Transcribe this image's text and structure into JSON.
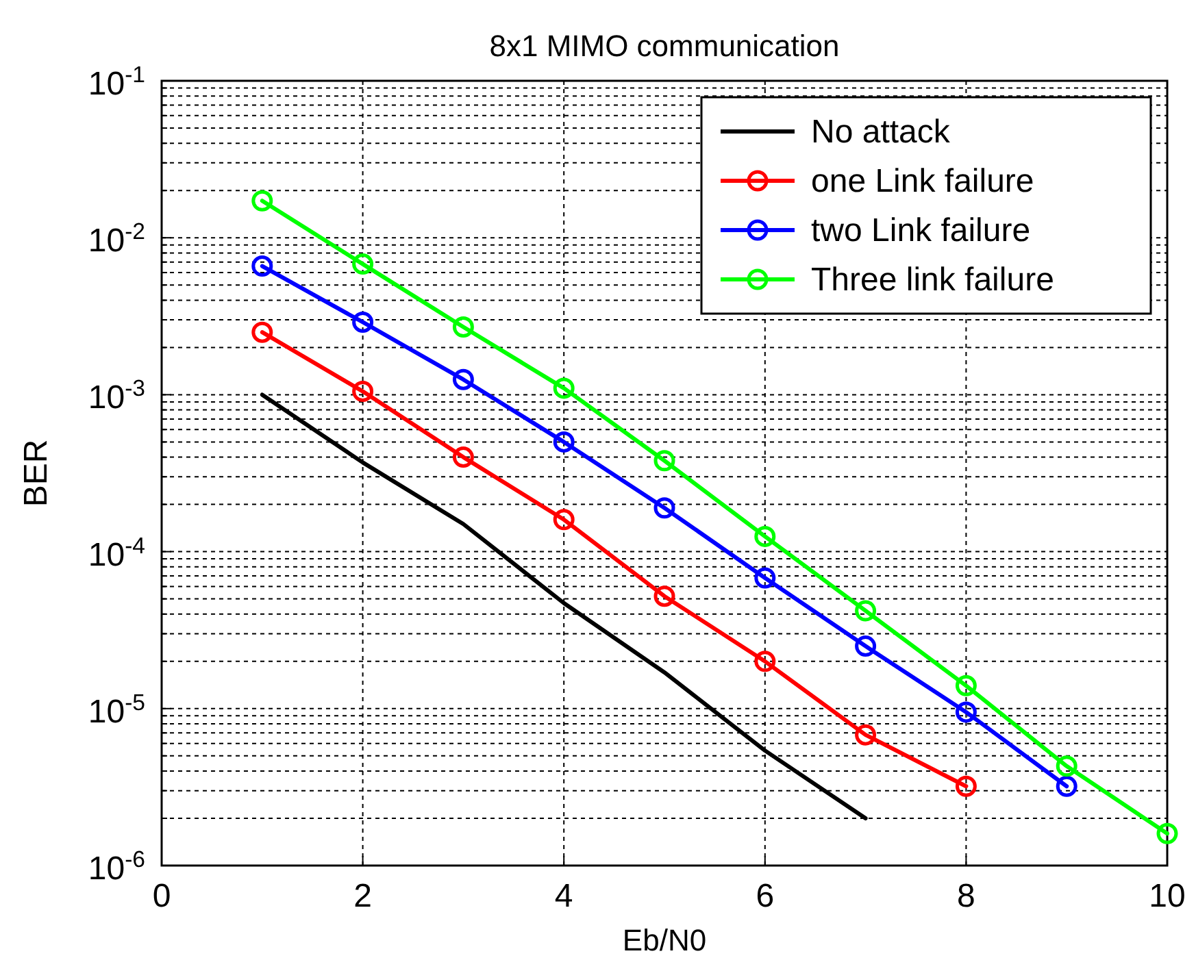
{
  "chart_data": {
    "type": "line",
    "title": "8x1 MIMO communication",
    "xlabel": "Eb/N0",
    "ylabel": "BER",
    "xlim": [
      0,
      10
    ],
    "xticks": [
      0,
      2,
      4,
      6,
      8,
      10
    ],
    "ylim": [
      1e-06,
      0.1
    ],
    "log": "y",
    "yticks": [
      {
        "value": 1e-06,
        "label": "10$^{-6}$"
      },
      {
        "value": 2e-06,
        "label": null
      },
      {
        "value": 3e-06,
        "label": null
      },
      {
        "value": 4e-06,
        "label": null
      },
      {
        "value": 5e-06,
        "label": null
      },
      {
        "value": 6e-06,
        "label": null
      },
      {
        "value": 7e-06,
        "label": null
      },
      {
        "value": 8e-06,
        "label": null
      },
      {
        "value": 9e-06,
        "label": null
      },
      {
        "value": 1e-05,
        "label": "10$^{-5}$"
      },
      {
        "value": 2e-05,
        "label": null
      },
      {
        "value": 3e-05,
        "label": null
      },
      {
        "value": 4e-05,
        "label": null
      },
      {
        "value": 5e-05,
        "label": null
      },
      {
        "value": 6e-05,
        "label": null
      },
      {
        "value": 7e-05,
        "label": null
      },
      {
        "value": 8e-05,
        "label": null
      },
      {
        "value": 9e-05,
        "label": null
      },
      {
        "value": 0.0001,
        "label": "10$^{-4}$"
      },
      {
        "value": 0.0002,
        "label": null
      },
      {
        "value": 0.0003,
        "label": null
      },
      {
        "value": 0.0004,
        "label": null
      },
      {
        "value": 0.0005,
        "label": null
      },
      {
        "value": 0.0006,
        "label": null
      },
      {
        "value": 0.0007,
        "label": null
      },
      {
        "value": 0.0008,
        "label": null
      },
      {
        "value": 0.0009,
        "label": null
      },
      {
        "value": 0.001,
        "label": "10$^{-3}$"
      },
      {
        "value": 0.002,
        "label": null
      },
      {
        "value": 0.003,
        "label": null
      },
      {
        "value": 0.004,
        "label": null
      },
      {
        "value": 0.005,
        "label": null
      },
      {
        "value": 0.006,
        "label": null
      },
      {
        "value": 0.007,
        "label": null
      },
      {
        "value": 0.008,
        "label": null
      },
      {
        "value": 0.009,
        "label": null
      },
      {
        "value": 0.01,
        "label": "10$^{-2}$"
      },
      {
        "value": 0.02,
        "label": null
      },
      {
        "value": 0.03,
        "label": null
      },
      {
        "value": 0.04,
        "label": null
      },
      {
        "value": 0.05,
        "label": null
      },
      {
        "value": 0.06,
        "label": null
      },
      {
        "value": 0.07,
        "label": null
      },
      {
        "value": 0.08,
        "label": null
      },
      {
        "value": 0.09,
        "label": null
      },
      {
        "value": 0.1,
        "label": "10$^{-1}$"
      }
    ],
    "grid": true,
    "legend": "top right",
    "line_style": "solid",
    "series": [
      {
        "name": "No attack",
        "color": "#000000",
        "marker": "none",
        "x": [
          1,
          2,
          3,
          4,
          5,
          6,
          7
        ],
        "values": [
          0.001,
          0.00037,
          0.00015,
          4.7e-05,
          1.7e-05,
          5.4e-06,
          2e-06
        ]
      },
      {
        "name": "one Link failure",
        "color": "#ff0000",
        "marker": "circle",
        "x": [
          1,
          2,
          3,
          4,
          5,
          6,
          7,
          8
        ],
        "values": [
          0.0025,
          0.00105,
          0.0004,
          0.00016,
          5.2e-05,
          2e-05,
          6.8e-06,
          3.2e-06
        ]
      },
      {
        "name": "two Link failure",
        "color": "#0000ff",
        "marker": "circle",
        "x": [
          1,
          2,
          3,
          4,
          5,
          6,
          7,
          8,
          9
        ],
        "values": [
          0.0066,
          0.0029,
          0.00125,
          0.0005,
          0.00019,
          6.8e-05,
          2.5e-05,
          9.5e-06,
          3.2e-06
        ]
      },
      {
        "name": "Three link failure",
        "color": "#00ff00",
        "marker": "circle",
        "x": [
          1,
          2,
          3,
          4,
          5,
          6,
          7,
          8,
          9,
          10
        ],
        "values": [
          0.0172,
          0.0068,
          0.0027,
          0.0011,
          0.00038,
          0.000125,
          4.2e-05,
          1.4e-05,
          4.3e-06,
          1.6e-06
        ]
      }
    ]
  }
}
